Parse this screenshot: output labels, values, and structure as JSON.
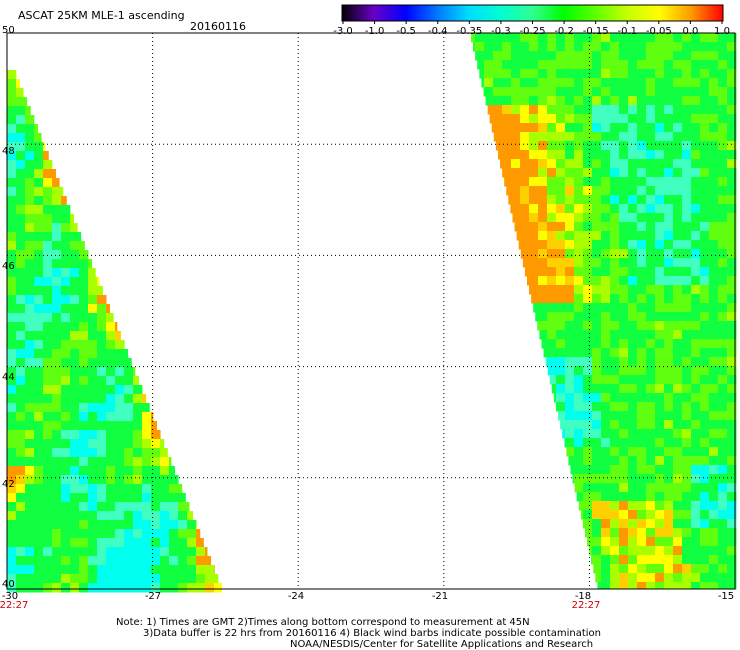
{
  "header": {
    "title": "ASCAT 25KM MLE-1 ascending",
    "date": "20160116"
  },
  "colorbar": {
    "ticks": [
      "-3.0",
      "-1.0",
      "-0.5",
      "-0.4",
      "-0.35",
      "-0.3",
      "-0.25",
      "-0.2",
      "-0.15",
      "-0.1",
      "-0.05",
      "0.0",
      "1.0"
    ],
    "colors": [
      "#000000",
      "#6a00c8",
      "#0000ff",
      "#0078ff",
      "#00ddff",
      "#00ffd0",
      "#30ff90",
      "#00ff00",
      "#60ff00",
      "#c8ff00",
      "#ffff00",
      "#ff9900",
      "#ff0000"
    ]
  },
  "map": {
    "lon_labels": [
      "-30",
      "-27",
      "-24",
      "-21",
      "-18",
      "-15"
    ],
    "lat_labels": [
      "50",
      "48",
      "46",
      "44",
      "42",
      "40"
    ],
    "time_labels": [
      {
        "text": "22:27",
        "lon": -30
      },
      {
        "text": "22:27",
        "lon": -18
      }
    ]
  },
  "footer": {
    "note1": "Note: 1) Times are GMT 2)Times along bottom correspond to measurement at 45N",
    "note2": "3)Data buffer is 22 hrs from 20160116 4) Black wind barbs indicate possible contamination",
    "note3": "NOAA/NESDIS/Center for Satellite Applications and Research"
  }
}
